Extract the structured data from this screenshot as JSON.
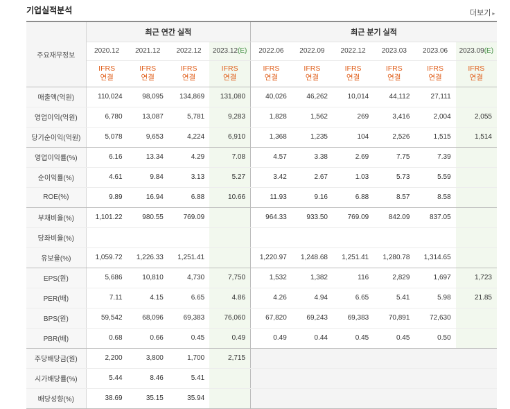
{
  "section_title": "기업실적분석",
  "more_label": "더보기",
  "header": {
    "label": "주요재무정보",
    "annual_title": "최근 연간 실적",
    "quarter_title": "최근 분기 실적",
    "annual_periods": [
      {
        "main": "2020.12",
        "est": ""
      },
      {
        "main": "2021.12",
        "est": ""
      },
      {
        "main": "2022.12",
        "est": ""
      },
      {
        "main": "2023.12",
        "est": "(E)"
      }
    ],
    "quarter_periods": [
      {
        "main": "2022.06",
        "est": ""
      },
      {
        "main": "2022.09",
        "est": ""
      },
      {
        "main": "2022.12",
        "est": ""
      },
      {
        "main": "2023.03",
        "est": ""
      },
      {
        "main": "2023.06",
        "est": ""
      },
      {
        "main": "2023.09",
        "est": "(E)"
      }
    ],
    "ifrs_line1": "IFRS",
    "ifrs_line2": "연결"
  },
  "rows": [
    {
      "label": "매출액(억원)",
      "values": [
        "110,024",
        "98,095",
        "134,869",
        "131,080",
        "40,026",
        "46,262",
        "10,014",
        "44,112",
        "27,111",
        ""
      ]
    },
    {
      "label": "영업이익(억원)",
      "values": [
        "6,780",
        "13,087",
        "5,781",
        "9,283",
        "1,828",
        "1,562",
        "269",
        "3,416",
        "2,004",
        "2,055"
      ]
    },
    {
      "label": "당기순이익(억원)",
      "values": [
        "5,078",
        "9,653",
        "4,224",
        "6,910",
        "1,368",
        "1,235",
        "104",
        "2,526",
        "1,515",
        "1,514"
      ]
    },
    {
      "label": "영업이익률(%)",
      "values": [
        "6.16",
        "13.34",
        "4.29",
        "7.08",
        "4.57",
        "3.38",
        "2.69",
        "7.75",
        "7.39",
        ""
      ]
    },
    {
      "label": "순이익률(%)",
      "values": [
        "4.61",
        "9.84",
        "3.13",
        "5.27",
        "3.42",
        "2.67",
        "1.03",
        "5.73",
        "5.59",
        ""
      ]
    },
    {
      "label": "ROE(%)",
      "values": [
        "9.89",
        "16.94",
        "6.88",
        "10.66",
        "11.93",
        "9.16",
        "6.88",
        "8.57",
        "8.58",
        ""
      ]
    },
    {
      "label": "부채비율(%)",
      "values": [
        "1,101.22",
        "980.55",
        "769.09",
        "",
        "964.33",
        "933.50",
        "769.09",
        "842.09",
        "837.05",
        ""
      ]
    },
    {
      "label": "당좌비율(%)",
      "values": [
        "",
        "",
        "",
        "",
        "",
        "",
        "",
        "",
        "",
        ""
      ]
    },
    {
      "label": "유보율(%)",
      "values": [
        "1,059.72",
        "1,226.33",
        "1,251.41",
        "",
        "1,220.97",
        "1,248.68",
        "1,251.41",
        "1,280.78",
        "1,314.65",
        ""
      ]
    },
    {
      "label": "EPS(원)",
      "values": [
        "5,686",
        "10,810",
        "4,730",
        "7,750",
        "1,532",
        "1,382",
        "116",
        "2,829",
        "1,697",
        "1,723"
      ]
    },
    {
      "label": "PER(배)",
      "values": [
        "7.11",
        "4.15",
        "6.65",
        "4.86",
        "4.26",
        "4.94",
        "6.65",
        "5.41",
        "5.98",
        "21.85"
      ]
    },
    {
      "label": "BPS(원)",
      "values": [
        "59,542",
        "68,096",
        "69,383",
        "76,060",
        "67,820",
        "69,243",
        "69,383",
        "70,891",
        "72,630",
        ""
      ]
    },
    {
      "label": "PBR(배)",
      "values": [
        "0.68",
        "0.66",
        "0.45",
        "0.49",
        "0.49",
        "0.44",
        "0.45",
        "0.45",
        "0.50",
        ""
      ]
    },
    {
      "label": "주당배당금(원)",
      "values": [
        "2,200",
        "3,800",
        "1,700",
        "2,715",
        "",
        "",
        "",
        "",
        "",
        ""
      ]
    },
    {
      "label": "시가배당률(%)",
      "values": [
        "5.44",
        "8.46",
        "5.41",
        "",
        "",
        "",
        "",
        "",
        "",
        ""
      ]
    },
    {
      "label": "배당성향(%)",
      "values": [
        "38.69",
        "35.15",
        "35.94",
        "",
        "",
        "",
        "",
        "",
        "",
        ""
      ]
    }
  ]
}
